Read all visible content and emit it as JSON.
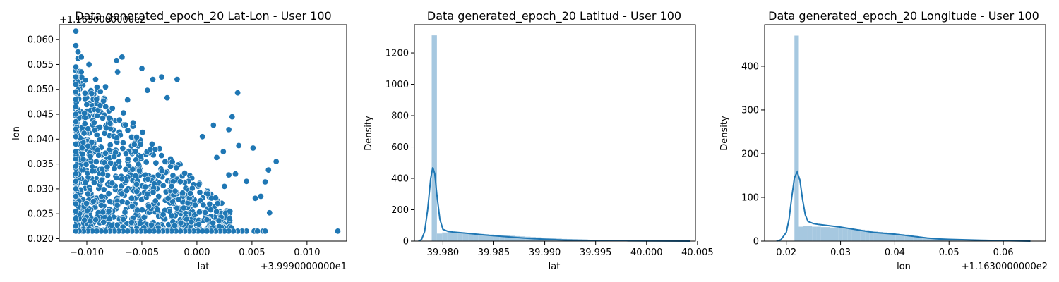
{
  "colors": {
    "point_fill": "#1f77b4",
    "point_edge": "#ffffff",
    "hist_fill": "#a6c8e0",
    "kde_line": "#1f77b4",
    "axes": "#000000",
    "background": "#ffffff"
  },
  "chart_data": [
    {
      "type": "scatter",
      "title": "Data generated_epoch_20 Lat-Lon - User 100",
      "xlabel": "lat",
      "ylabel": "lon",
      "x_offset_label": "+3.9990000000e1",
      "y_offset_label": "+1.1630000000e2",
      "xlim": [
        -0.0125,
        0.0136
      ],
      "ylim": [
        0.0195,
        0.063
      ],
      "xticks": [
        -0.01,
        -0.005,
        0.0,
        0.005,
        0.01
      ],
      "xtick_labels": [
        "−0.010",
        "−0.005",
        "0.000",
        "0.005",
        "0.010"
      ],
      "yticks": [
        0.02,
        0.025,
        0.03,
        0.035,
        0.04,
        0.045,
        0.05,
        0.055,
        0.06
      ],
      "ytick_labels": [
        "0.020",
        "0.025",
        "0.030",
        "0.035",
        "0.040",
        "0.045",
        "0.050",
        "0.055",
        "0.060"
      ],
      "grid": false,
      "points": [
        [
          -0.011,
          0.0617
        ],
        [
          -0.011,
          0.0588
        ],
        [
          -0.0108,
          0.0575
        ],
        [
          -0.0108,
          0.0562
        ],
        [
          -0.0105,
          0.0565
        ],
        [
          -0.0098,
          0.055
        ],
        [
          -0.0105,
          0.0535
        ],
        [
          -0.0092,
          0.052
        ],
        [
          -0.0083,
          0.0505
        ],
        [
          -0.0068,
          0.0565
        ],
        [
          -0.0073,
          0.0558
        ],
        [
          -0.0072,
          0.0535
        ],
        [
          -0.005,
          0.0542
        ],
        [
          -0.004,
          0.052
        ],
        [
          -0.0032,
          0.0525
        ],
        [
          -0.0018,
          0.052
        ],
        [
          0.0037,
          0.0493
        ],
        [
          -0.0045,
          0.0498
        ],
        [
          -0.0027,
          0.0483
        ],
        [
          -0.0063,
          0.0479
        ],
        [
          0.0005,
          0.0405
        ],
        [
          0.0015,
          0.0428
        ],
        [
          0.0032,
          0.0445
        ],
        [
          0.0051,
          0.0382
        ],
        [
          0.0029,
          0.0419
        ],
        [
          0.0038,
          0.0387
        ],
        [
          0.0024,
          0.0375
        ],
        [
          0.0018,
          0.0363
        ],
        [
          0.0045,
          0.0315
        ],
        [
          0.0065,
          0.0338
        ],
        [
          0.0072,
          0.0355
        ],
        [
          0.0062,
          0.0314
        ],
        [
          0.0058,
          0.0285
        ],
        [
          0.0053,
          0.0281
        ],
        [
          0.0066,
          0.0252
        ],
        [
          0.003,
          0.0255
        ],
        [
          0.0025,
          0.0305
        ],
        [
          0.0029,
          0.0328
        ],
        [
          0.0035,
          0.033
        ],
        [
          0.001,
          0.029
        ],
        [
          0.0031,
          0.0222
        ],
        [
          0.0017,
          0.0282
        ],
        [
          0.0128,
          0.0215
        ],
        [
          0.006,
          0.0215
        ],
        [
          0.0052,
          0.0215
        ],
        [
          0.0045,
          0.0215
        ],
        [
          0.0041,
          0.0215
        ],
        [
          0.0037,
          0.0215
        ],
        [
          0.0033,
          0.0215
        ],
        [
          0.0029,
          0.0215
        ],
        [
          0.0025,
          0.0215
        ],
        [
          0.0021,
          0.0215
        ],
        [
          0.0017,
          0.0215
        ],
        [
          0.0013,
          0.0215
        ],
        [
          0.0009,
          0.0215
        ],
        [
          0.0005,
          0.0215
        ],
        [
          0.0001,
          0.0215
        ],
        [
          -0.0003,
          0.0215
        ],
        [
          -0.0007,
          0.0215
        ],
        [
          -0.0011,
          0.0215
        ],
        [
          -0.0015,
          0.0215
        ],
        [
          -0.0019,
          0.0215
        ],
        [
          -0.0023,
          0.0215
        ],
        [
          -0.0027,
          0.0215
        ],
        [
          -0.0031,
          0.0215
        ],
        [
          -0.0035,
          0.0215
        ],
        [
          -0.0039,
          0.0215
        ],
        [
          -0.0043,
          0.0215
        ],
        [
          -0.0047,
          0.0215
        ],
        [
          -0.0051,
          0.0215
        ],
        [
          -0.0055,
          0.0215
        ],
        [
          -0.0059,
          0.0215
        ],
        [
          -0.0063,
          0.0215
        ],
        [
          -0.0067,
          0.0215
        ],
        [
          -0.0071,
          0.0215
        ],
        [
          -0.0075,
          0.0215
        ],
        [
          -0.0079,
          0.0215
        ],
        [
          -0.0083,
          0.0215
        ],
        [
          -0.0087,
          0.0215
        ],
        [
          -0.0091,
          0.0215
        ],
        [
          -0.0095,
          0.0215
        ],
        [
          -0.0099,
          0.0215
        ],
        [
          -0.0103,
          0.0215
        ],
        [
          -0.0107,
          0.0215
        ],
        [
          -0.011,
          0.0215
        ],
        [
          0.0055,
          0.0215
        ],
        [
          0.0062,
          0.0215
        ],
        [
          -0.011,
          0.0225
        ],
        [
          -0.011,
          0.024
        ],
        [
          -0.011,
          0.0255
        ],
        [
          -0.011,
          0.027
        ],
        [
          -0.011,
          0.0285
        ],
        [
          -0.011,
          0.03
        ],
        [
          -0.011,
          0.0315
        ],
        [
          -0.011,
          0.033
        ],
        [
          -0.011,
          0.0345
        ],
        [
          -0.011,
          0.036
        ],
        [
          -0.011,
          0.0375
        ],
        [
          -0.011,
          0.039
        ],
        [
          -0.011,
          0.0405
        ],
        [
          -0.011,
          0.042
        ],
        [
          -0.011,
          0.0435
        ],
        [
          -0.011,
          0.045
        ],
        [
          -0.011,
          0.0465
        ],
        [
          -0.011,
          0.048
        ],
        [
          -0.011,
          0.0495
        ],
        [
          -0.011,
          0.051
        ],
        [
          -0.011,
          0.0525
        ],
        [
          -0.011,
          0.0545
        ]
      ]
    },
    {
      "type": "histogram+kde",
      "title": "Data generated_epoch_20 Latitud - User 100",
      "xlabel": "lat",
      "ylabel": "Density",
      "xlim": [
        39.9772,
        40.0048
      ],
      "ylim": [
        0,
        1380
      ],
      "xticks": [
        39.98,
        39.985,
        39.99,
        39.995,
        40.0,
        40.005
      ],
      "xtick_labels": [
        "39.980",
        "39.985",
        "39.990",
        "39.995",
        "40.000",
        "40.005"
      ],
      "yticks": [
        0,
        200,
        400,
        600,
        800,
        1000,
        1200
      ],
      "ytick_labels": [
        "0",
        "200",
        "400",
        "600",
        "800",
        "1000",
        "1200"
      ],
      "bin_edges_start": 39.9789,
      "bin_width": 0.000511,
      "bin_densities": [
        1312,
        48,
        55,
        58,
        56,
        55,
        52,
        50,
        48,
        46,
        44,
        42,
        40,
        38,
        36,
        34,
        32,
        30,
        28,
        26,
        24,
        22,
        20,
        18,
        16,
        14,
        13,
        12,
        11,
        10,
        9,
        8,
        7,
        6,
        6,
        5,
        5,
        4,
        4,
        3,
        3,
        2,
        2,
        2,
        2,
        1,
        1,
        1,
        1,
        1
      ],
      "kde_x": [
        39.9776,
        39.9779,
        39.9782,
        39.9785,
        39.9788,
        39.979,
        39.9792,
        39.9794,
        39.9797,
        39.98,
        39.9805,
        39.981,
        39.982,
        39.983,
        39.984,
        39.985,
        39.986,
        39.987,
        39.988,
        39.989,
        39.99,
        39.991,
        39.992,
        39.994,
        39.996,
        39.998,
        40.0,
        40.002,
        40.0043
      ],
      "kde_y": [
        0,
        10,
        60,
        200,
        400,
        470,
        430,
        300,
        140,
        75,
        62,
        58,
        52,
        46,
        40,
        34,
        29,
        24,
        19,
        15,
        12,
        9,
        7,
        5,
        3,
        2,
        1,
        0.5,
        0
      ]
    },
    {
      "type": "histogram+kde",
      "title": "Data generated_epoch_20 Longitude - User 100",
      "xlabel": "lon",
      "ylabel": "Density",
      "x_offset_label": "+1.1630000000e2",
      "xlim": [
        0.016,
        0.0678
      ],
      "ylim": [
        0,
        495
      ],
      "xticks": [
        0.02,
        0.03,
        0.04,
        0.05,
        0.06
      ],
      "xtick_labels": [
        "0.02",
        "0.03",
        "0.04",
        "0.05",
        "0.06"
      ],
      "yticks": [
        0,
        100,
        200,
        300,
        400
      ],
      "ytick_labels": [
        "0",
        "100",
        "200",
        "300",
        "400"
      ],
      "bin_edges_start": 0.0215,
      "bin_width": 0.000812,
      "bin_densities": [
        470,
        33,
        35,
        34,
        33,
        33,
        32,
        32,
        31,
        31,
        30,
        30,
        29,
        28,
        27,
        26,
        25,
        24,
        22,
        21,
        20,
        19,
        18,
        17,
        16,
        15,
        13,
        12,
        10,
        9,
        8,
        7,
        6,
        5,
        5,
        4,
        4,
        3,
        3,
        3,
        2,
        2,
        2,
        2,
        1,
        1,
        1,
        1,
        1,
        1
      ],
      "kde_x": [
        0.0182,
        0.019,
        0.02,
        0.0205,
        0.021,
        0.0215,
        0.022,
        0.0225,
        0.023,
        0.0235,
        0.024,
        0.025,
        0.026,
        0.028,
        0.03,
        0.032,
        0.034,
        0.036,
        0.038,
        0.04,
        0.042,
        0.044,
        0.046,
        0.048,
        0.05,
        0.053,
        0.056,
        0.06,
        0.065
      ],
      "kde_y": [
        0,
        3,
        20,
        50,
        100,
        145,
        158,
        140,
        95,
        60,
        45,
        40,
        38,
        35,
        32,
        28,
        24,
        20,
        18,
        16,
        13,
        10,
        7,
        5,
        4,
        3,
        2,
        1,
        0
      ]
    }
  ]
}
